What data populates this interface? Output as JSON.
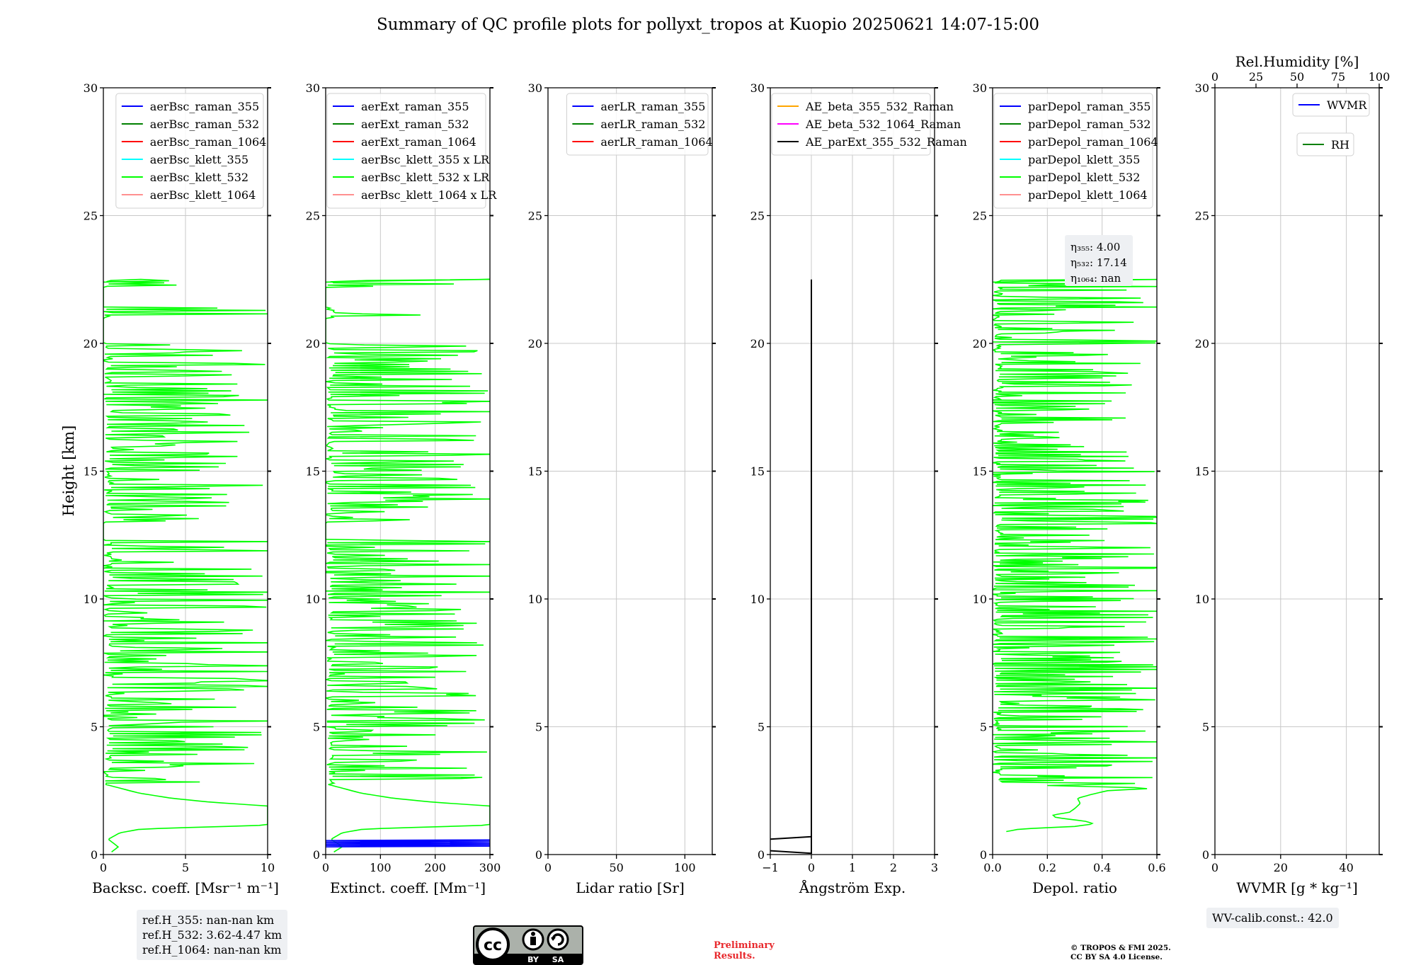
{
  "title": "Summary of QC profile plots for pollyxt_tropos at Kuopio 20250621 14:07-15:00",
  "y_axis_label": "Height [km]",
  "chart_data": [
    {
      "type": "line",
      "xlabel": "Backsc. coeff. [Msr⁻¹ m⁻¹]",
      "xlim": [
        0,
        10
      ],
      "xticks": [
        "0",
        "5",
        "10"
      ],
      "ylim": [
        0,
        30
      ],
      "yticks": [
        "0",
        "5",
        "10",
        "15",
        "20",
        "25",
        "30"
      ],
      "grid": true,
      "legend_location": "upper-right",
      "legend": [
        {
          "label": "aerBsc_raman_355",
          "color": "#0000ff"
        },
        {
          "label": "aerBsc_raman_532",
          "color": "#008000"
        },
        {
          "label": "aerBsc_raman_1064",
          "color": "#ff0000"
        },
        {
          "label": "aerBsc_klett_355",
          "color": "#00ffff"
        },
        {
          "label": "aerBsc_klett_532",
          "color": "#00ff00"
        },
        {
          "label": "aerBsc_klett_1064",
          "color": "#ff9090"
        }
      ],
      "series": [
        {
          "name": "aerBsc_klett_532",
          "color": "#00ff00",
          "seed": 11,
          "maxval": 10,
          "profile": [
            [
              0.1,
              0.5
            ],
            [
              0.3,
              0.9
            ],
            [
              0.6,
              0.3
            ],
            [
              0.85,
              1.0
            ],
            [
              1.0,
              2.3
            ],
            [
              1.15,
              10
            ],
            [
              1.5,
              10
            ],
            [
              1.9,
              10
            ],
            [
              2.05,
              6.5
            ],
            [
              2.2,
              4.2
            ],
            [
              2.4,
              2.2
            ],
            [
              2.6,
              1.0
            ],
            [
              2.75,
              0.1
            ]
          ]
        }
      ]
    },
    {
      "type": "line",
      "xlabel": "Extinct. coeff. [Mm⁻¹]",
      "xlim": [
        0,
        300
      ],
      "xticks": [
        "0",
        "100",
        "200",
        "300"
      ],
      "ylim": [
        0,
        30
      ],
      "yticks": [
        "0",
        "5",
        "10",
        "15",
        "20",
        "25",
        "30"
      ],
      "grid": true,
      "legend_location": "upper-right",
      "legend": [
        {
          "label": "aerExt_raman_355",
          "color": "#0000ff"
        },
        {
          "label": "aerExt_raman_532",
          "color": "#008000"
        },
        {
          "label": "aerExt_raman_1064",
          "color": "#ff0000"
        },
        {
          "label": "aerBsc_klett_355 x LR",
          "color": "#00ffff"
        },
        {
          "label": "aerBsc_klett_532 x LR",
          "color": "#00ff00"
        },
        {
          "label": "aerBsc_klett_1064 x LR",
          "color": "#ff9090"
        }
      ],
      "series": [
        {
          "name": "aerBsc_klett_532 x LR",
          "color": "#00ff00",
          "seed": 23,
          "maxval": 300,
          "profile": [
            [
              0.1,
              15
            ],
            [
              0.3,
              30
            ],
            [
              0.6,
              10
            ],
            [
              0.85,
              30
            ],
            [
              1.0,
              70
            ],
            [
              1.15,
              300
            ],
            [
              1.5,
              300
            ],
            [
              1.9,
              300
            ],
            [
              2.05,
              195
            ],
            [
              2.2,
              125
            ],
            [
              2.4,
              65
            ],
            [
              2.6,
              30
            ],
            [
              2.75,
              3
            ]
          ]
        },
        {
          "name": "aerExt_raman_355",
          "color": "#0000ff",
          "seed": 0,
          "maxval": 300,
          "zigzag": [
            [
              0.3,
              0.58
            ],
            300
          ]
        }
      ]
    },
    {
      "type": "line",
      "xlabel": "Lidar ratio [Sr]",
      "xlim": [
        0,
        120
      ],
      "xticks": [
        "0",
        "50",
        "100"
      ],
      "xtick_values": [
        0,
        50,
        100
      ],
      "ylim": [
        0,
        30
      ],
      "yticks": [
        "0",
        "5",
        "10",
        "15",
        "20",
        "25",
        "30"
      ],
      "grid": true,
      "legend_location": "upper-right",
      "legend": [
        {
          "label": "aerLR_raman_355",
          "color": "#0000ff"
        },
        {
          "label": "aerLR_raman_532",
          "color": "#008000"
        },
        {
          "label": "aerLR_raman_1064",
          "color": "#ff0000"
        }
      ],
      "series": []
    },
    {
      "type": "line",
      "xlabel": "Ångström Exp.",
      "xlim": [
        -1,
        3
      ],
      "xticks": [
        "−1",
        "0",
        "1",
        "2",
        "3"
      ],
      "ylim": [
        0,
        30
      ],
      "yticks": [
        "0",
        "5",
        "10",
        "15",
        "20",
        "25",
        "30"
      ],
      "grid": true,
      "legend_location": "upper-right",
      "legend": [
        {
          "label": "AE_beta_355_532_Raman",
          "color": "#ffa500"
        },
        {
          "label": "AE_beta_532_1064_Raman",
          "color": "#ff00ff"
        },
        {
          "label": "AE_parExt_355_532_Raman",
          "color": "#000000"
        }
      ],
      "series": [
        {
          "name": "AE_beta_532_1064_Raman",
          "color": "#ff00ff",
          "points": [
            [
              0,
              0.05
            ],
            [
              0,
              0.7
            ]
          ]
        },
        {
          "name": "AE_parExt_355_532_Raman",
          "color": "#000000",
          "points": [
            [
              -1,
              0.15
            ],
            [
              0,
              0.05
            ],
            [
              0,
              0.7
            ],
            [
              -1,
              0.6
            ],
            [
              0,
              0.7
            ],
            [
              0,
              22.5
            ]
          ]
        }
      ]
    },
    {
      "type": "line",
      "xlabel": "Depol. ratio",
      "xlim": [
        0,
        0.6
      ],
      "xticks": [
        "0.0",
        "0.2",
        "0.4",
        "0.6"
      ],
      "ylim": [
        0,
        30
      ],
      "yticks": [
        "0",
        "5",
        "10",
        "15",
        "20",
        "25",
        "30"
      ],
      "grid": true,
      "legend_location": "upper-right",
      "legend": [
        {
          "label": "parDepol_raman_355",
          "color": "#0000ff"
        },
        {
          "label": "parDepol_raman_532",
          "color": "#008000"
        },
        {
          "label": "parDepol_raman_1064",
          "color": "#ff0000"
        },
        {
          "label": "parDepol_klett_355",
          "color": "#00ffff"
        },
        {
          "label": "parDepol_klett_532",
          "color": "#00ff00"
        },
        {
          "label": "parDepol_klett_1064",
          "color": "#ff9090"
        }
      ],
      "annotation": [
        "η₃₅₅: 4.00",
        "η₅₃₂: 17.14",
        "η₁₀₆₄: nan"
      ],
      "series": [
        {
          "name": "parDepol_klett_532",
          "color": "#00ff00",
          "seed": 37,
          "maxval": 0.6,
          "dense": true,
          "profile": [
            [
              0.9,
              0.05
            ],
            [
              1.0,
              0.1
            ],
            [
              1.1,
              0.3
            ],
            [
              1.2,
              0.37
            ],
            [
              1.3,
              0.34
            ],
            [
              1.45,
              0.23
            ],
            [
              1.55,
              0.22
            ],
            [
              1.65,
              0.28
            ],
            [
              1.8,
              0.3
            ],
            [
              2.0,
              0.32
            ],
            [
              2.2,
              0.31
            ],
            [
              2.35,
              0.36
            ],
            [
              2.5,
              0.42
            ],
            [
              2.6,
              0.6
            ],
            [
              2.7,
              0.2
            ],
            [
              2.8,
              0.6
            ]
          ]
        }
      ]
    },
    {
      "type": "line",
      "xlabel": "WVMR [g * kg⁻¹]",
      "xlim": [
        0,
        50
      ],
      "xticks": [
        "0",
        "20",
        "40"
      ],
      "xtick_values": [
        0,
        20,
        40
      ],
      "ylim": [
        0,
        30
      ],
      "yticks": [
        "0",
        "5",
        "10",
        "15",
        "20",
        "25",
        "30"
      ],
      "secondary_xlabel": "Rel.Humidity [%]",
      "secondary_xlim": [
        0,
        100
      ],
      "secondary_xticks": [
        "0",
        "25",
        "50",
        "75",
        "100"
      ],
      "grid": true,
      "legend": [
        {
          "label": "WVMR",
          "color": "#0000ff"
        },
        {
          "label": "RH",
          "color": "#008000"
        }
      ],
      "series": []
    }
  ],
  "refh_box": [
    "ref.H_355: nan-nan km",
    "ref.H_532: 3.62-4.47 km",
    "ref.H_1064: nan-nan km"
  ],
  "wvcalib_text": "WV-calib.const.: 42.0",
  "license_logo": {
    "text_by": "BY",
    "text_sa": "SA"
  },
  "preliminary_text": [
    "Preliminary",
    "Results."
  ],
  "copyright_text": [
    "© TROPOS & FMI 2025.",
    "CC BY SA 4.0 License."
  ]
}
